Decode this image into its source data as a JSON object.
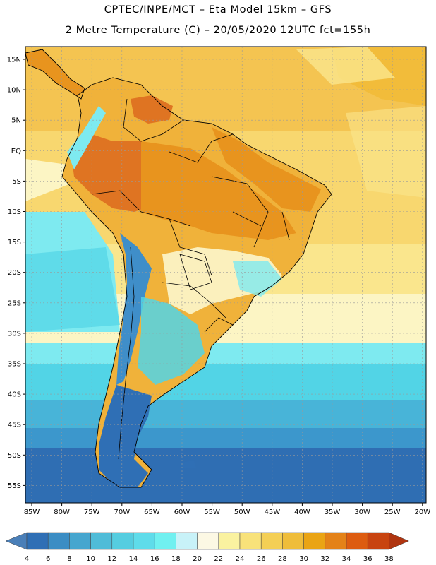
{
  "header": {
    "line1": "CPTEC/INPE/MCT –  Eta Model 15km – GFS",
    "line2": "2 Metre Temperature (C) – 20/05/2020 12UTC fct=155h"
  },
  "axes": {
    "latitude_labels": [
      "15N",
      "10N",
      "5N",
      "EQ",
      "5S",
      "10S",
      "15S",
      "20S",
      "25S",
      "30S",
      "35S",
      "40S",
      "45S",
      "50S",
      "55S"
    ],
    "longitude_labels": [
      "85W",
      "80W",
      "75W",
      "70W",
      "65W",
      "60W",
      "55W",
      "50W",
      "45W",
      "40W",
      "35W",
      "30W",
      "25W",
      "20W"
    ]
  },
  "colorbar": {
    "labels": [
      "4",
      "6",
      "8",
      "10",
      "12",
      "14",
      "16",
      "18",
      "20",
      "22",
      "24",
      "26",
      "28",
      "30",
      "32",
      "34",
      "36",
      "38"
    ],
    "colors": [
      "#4a7fb8",
      "#2f6fb5",
      "#3b8dc4",
      "#46a6cf",
      "#4fbcd8",
      "#55cde0",
      "#5fdcea",
      "#70f0f0",
      "#c8f2f8",
      "#fcf8e4",
      "#faf2a0",
      "#f8e27a",
      "#f4cf55",
      "#efbd3a",
      "#eaa414",
      "#e48218",
      "#dd5c10",
      "#c84410",
      "#b03510"
    ]
  },
  "map_colors": {
    "ocean_north": "#f4c451",
    "ocean_north_deep": "#f0b82c",
    "ocean_warm_light": "#f8d76f",
    "ocean_pale": "#fae68d",
    "ocean_cream": "#fcf5c4",
    "ocean_cyan_light": "#7eeaf0",
    "ocean_cyan": "#52d4e6",
    "ocean_mid": "#48b4d8",
    "ocean_blue": "#3c97cc",
    "ocean_south": "#2f6eb3",
    "land_hot": "#df7422",
    "land_warm": "#e8941e",
    "land_mild": "#f0b23a",
    "land_pale": "#fbf0bd",
    "land_andes": "#3f8ec9",
    "land_patagonia": "#2f6fb5",
    "coast_line": "#000000",
    "grid_line": "#999999"
  }
}
